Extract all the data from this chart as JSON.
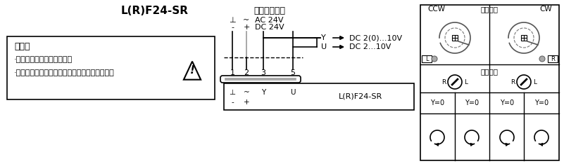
{
  "title": "L(R)F24-SR",
  "subtitle": "连续调节控制",
  "ac_label": "AC 24V",
  "dc_label": "DC 24V",
  "y_signal": "DC 2(0)...10V",
  "u_signal": "DC 2...10V",
  "note_title": "注意：",
  "note_line1": "·通过安全隔离变压器连接！",
  "note_line2": "·可并行连接多个执行器，但必须注意耗电功率。",
  "terminal_labels": [
    "1",
    "2",
    "3",
    "5"
  ],
  "bottom_label_top": [
    "⊥",
    "~",
    "Y",
    "U"
  ],
  "bottom_label_bot": [
    "-",
    "+",
    "",
    ""
  ],
  "model_label": "L(R)F24-SR",
  "ccw_label": "CCW",
  "cw_label": "CW",
  "install_label": "安装位置",
  "switch_label": "转向开关",
  "y0_label": "Y=0",
  "bg_color": "#ffffff",
  "line_color": "#000000",
  "gray_color": "#999999"
}
